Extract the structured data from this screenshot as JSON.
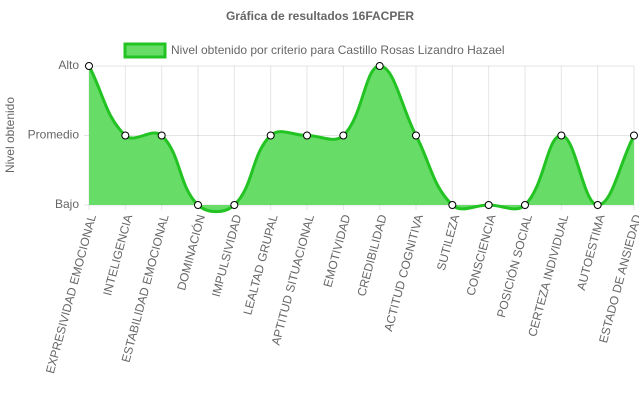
{
  "chart_data": {
    "type": "line",
    "title": "Gráfica de resultados 16FACPER",
    "y_label": "Nivel obtenido",
    "categories": [
      "EXPRESIVIDAD EMOCIONAL",
      "INTELIGENCIA",
      "ESTABILIDAD EMOCIONAL",
      "DOMINACIÓN",
      "IMPULSIVIDAD",
      "LEALTAD GRUPAL",
      "APTITUD SITUACIONAL",
      "EMOTIVIDAD",
      "CREDIBILIDAD",
      "ACTITUD COGNITIVA",
      "SUTILEZA",
      "CONSCIENCIA",
      "POSICIÓN SOCIAL",
      "CERTEZA INDIVIDUAL",
      "AUTOESTIMA",
      "ESTADO DE ANSIEDAD"
    ],
    "series": [
      {
        "name": "Nivel obtenido por criterio para Castillo Rosas Lizandro Hazael",
        "color": "#22c322",
        "fill_color": "#67dc67",
        "values": [
          3,
          2,
          2,
          1,
          1,
          2,
          2,
          2,
          3,
          2,
          1,
          1,
          1,
          2,
          1,
          2
        ]
      }
    ],
    "ylim": [
      1,
      3
    ],
    "yticks": [
      {
        "value": 1,
        "label": "Bajo"
      },
      {
        "value": 2,
        "label": "Promedio"
      },
      {
        "value": 3,
        "label": "Alto"
      }
    ],
    "grid": true
  }
}
